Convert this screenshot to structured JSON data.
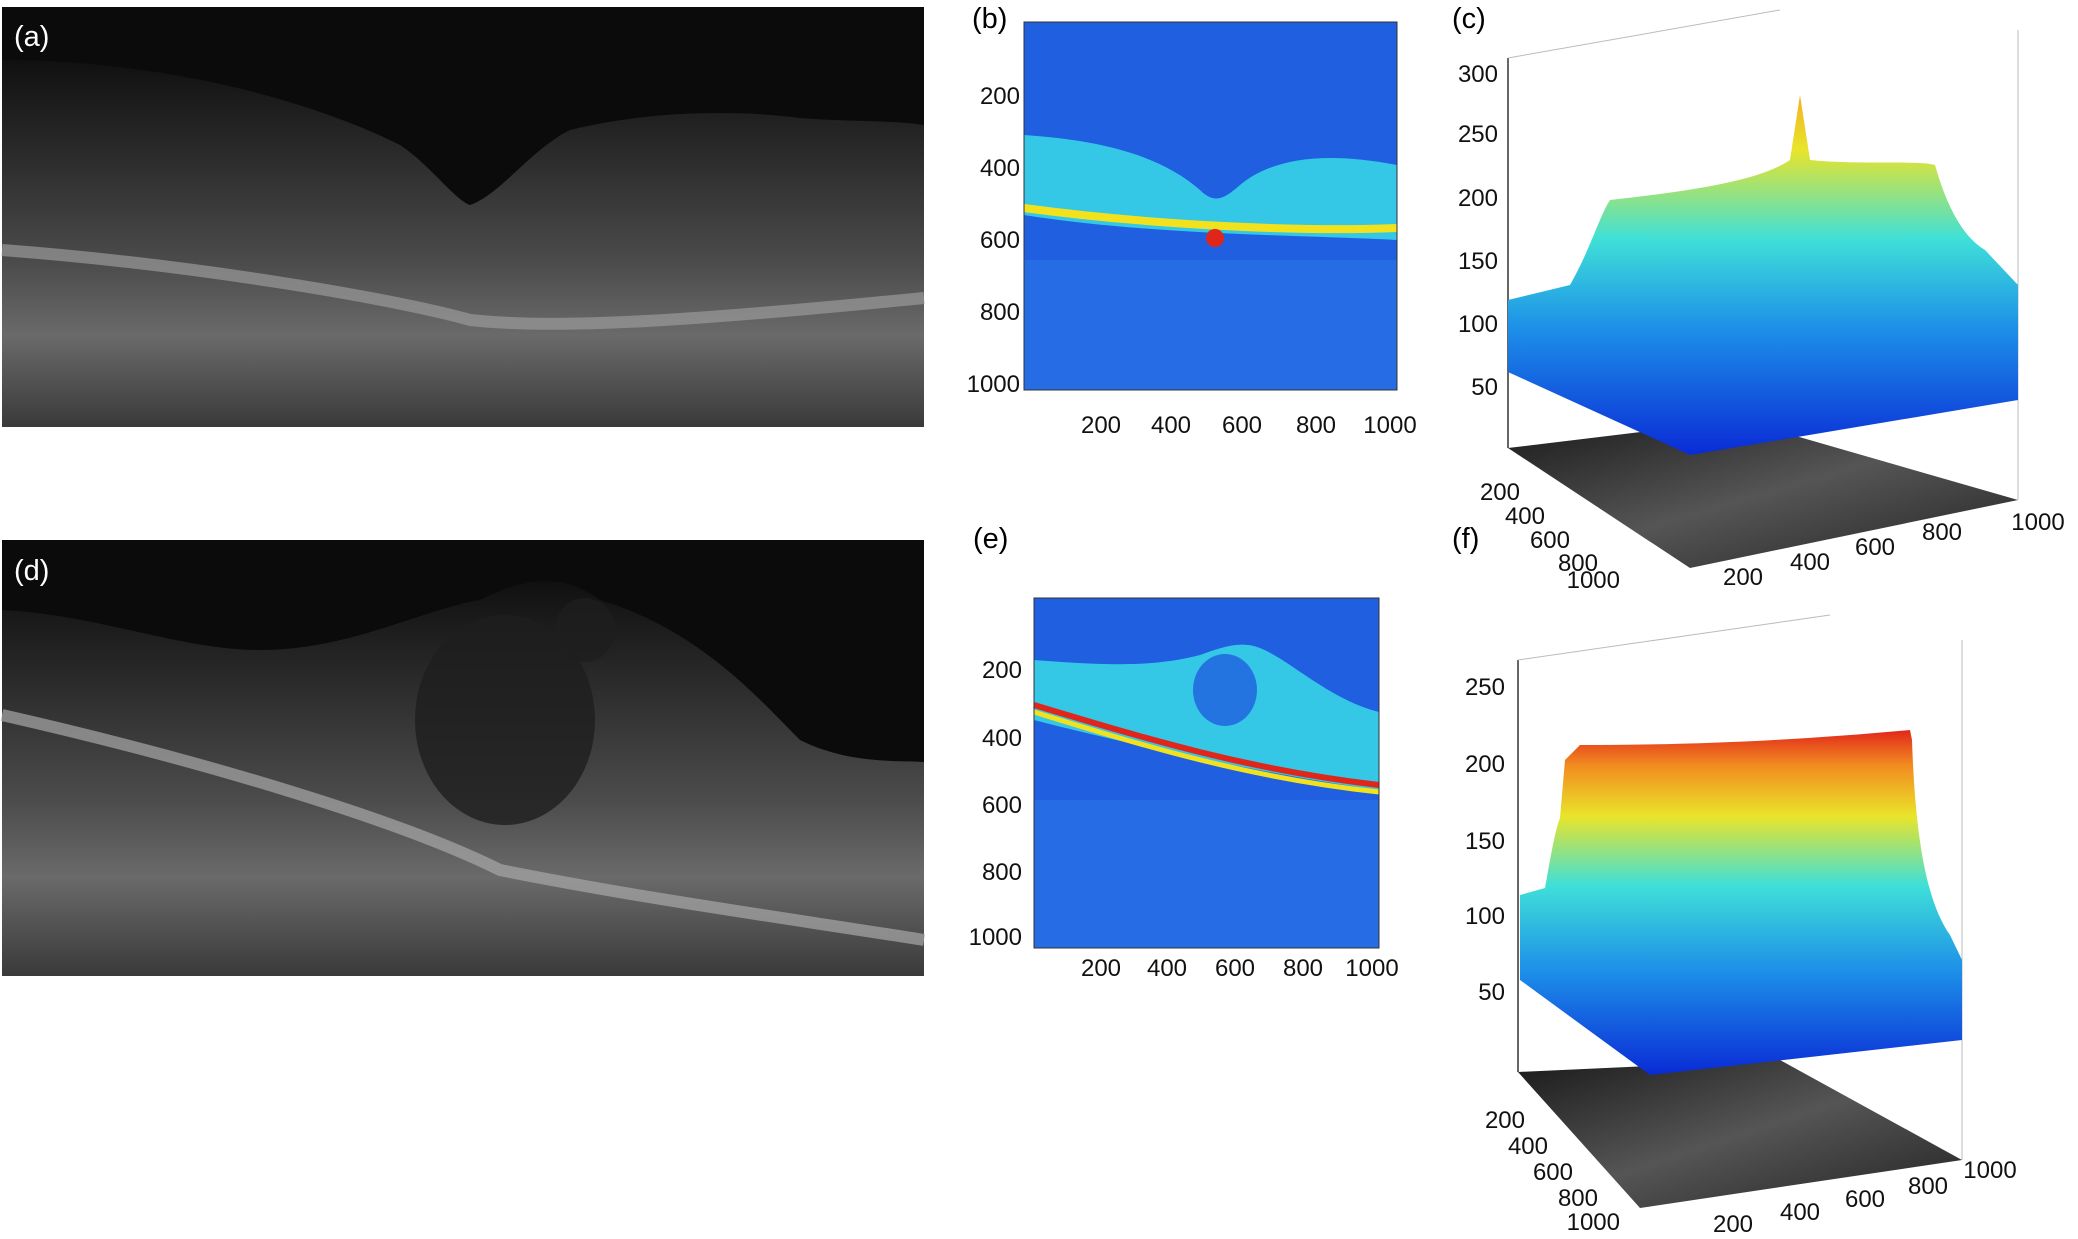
{
  "panels": {
    "a": {
      "label": "(a)"
    },
    "b": {
      "label": "(b)",
      "x_ticks": [
        "200",
        "400",
        "600",
        "800",
        "1000"
      ],
      "y_ticks": [
        "200",
        "400",
        "600",
        "800",
        "1000"
      ]
    },
    "c": {
      "label": "(c)",
      "z_ticks": [
        "300",
        "250",
        "200",
        "150",
        "100",
        "50"
      ],
      "depth_ticks": [
        "200",
        "400",
        "600",
        "800",
        "1000"
      ],
      "width_ticks": [
        "200",
        "400",
        "600",
        "800",
        "1000"
      ]
    },
    "d": {
      "label": "(d)"
    },
    "e": {
      "label": "(e)",
      "x_ticks": [
        "200",
        "400",
        "600",
        "800",
        "1000"
      ],
      "y_ticks": [
        "200",
        "400",
        "600",
        "800",
        "1000"
      ]
    },
    "f": {
      "label": "(f)",
      "z_ticks": [
        "250",
        "200",
        "150",
        "100",
        "50"
      ],
      "depth_ticks": [
        "200",
        "400",
        "600",
        "800",
        "1000"
      ],
      "width_ticks": [
        "200",
        "400",
        "600",
        "800",
        "1000"
      ]
    }
  },
  "colors": {
    "oct_background": "#0b0b0b",
    "oct_tissue": "#5a5a5a",
    "jet_blue": "#1f5fe0",
    "jet_cyan": "#39d9e6",
    "jet_yellow": "#f2e21e",
    "jet_red": "#e0261b"
  }
}
